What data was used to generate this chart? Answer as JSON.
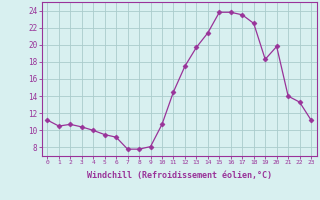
{
  "hours": [
    0,
    1,
    2,
    3,
    4,
    5,
    6,
    7,
    8,
    9,
    10,
    11,
    12,
    13,
    14,
    15,
    16,
    17,
    18,
    19,
    20,
    21,
    22,
    23
  ],
  "values": [
    11.2,
    10.5,
    10.7,
    10.4,
    10.0,
    9.5,
    9.2,
    7.8,
    7.8,
    8.1,
    10.7,
    14.5,
    17.5,
    19.7,
    21.4,
    23.8,
    23.8,
    23.5,
    22.5,
    18.3,
    19.8,
    14.0,
    13.3,
    11.2
  ],
  "xlim": [
    -0.5,
    23.5
  ],
  "ylim": [
    7,
    25
  ],
  "yticks": [
    8,
    10,
    12,
    14,
    16,
    18,
    20,
    22,
    24
  ],
  "xticks": [
    0,
    1,
    2,
    3,
    4,
    5,
    6,
    7,
    8,
    9,
    10,
    11,
    12,
    13,
    14,
    15,
    16,
    17,
    18,
    19,
    20,
    21,
    22,
    23
  ],
  "xtick_labels": [
    "0",
    "1",
    "2",
    "3",
    "4",
    "5",
    "6",
    "7",
    "8",
    "9",
    "10",
    "11",
    "12",
    "13",
    "14",
    "15",
    "16",
    "17",
    "18",
    "19",
    "20",
    "21",
    "22",
    "23"
  ],
  "xlabel": "Windchill (Refroidissement éolien,°C)",
  "line_color": "#993399",
  "marker": "D",
  "marker_size": 2.5,
  "bg_color": "#d8f0f0",
  "grid_color": "#aacccc",
  "tick_color": "#993399",
  "label_color": "#993399",
  "axis_color": "#993399"
}
